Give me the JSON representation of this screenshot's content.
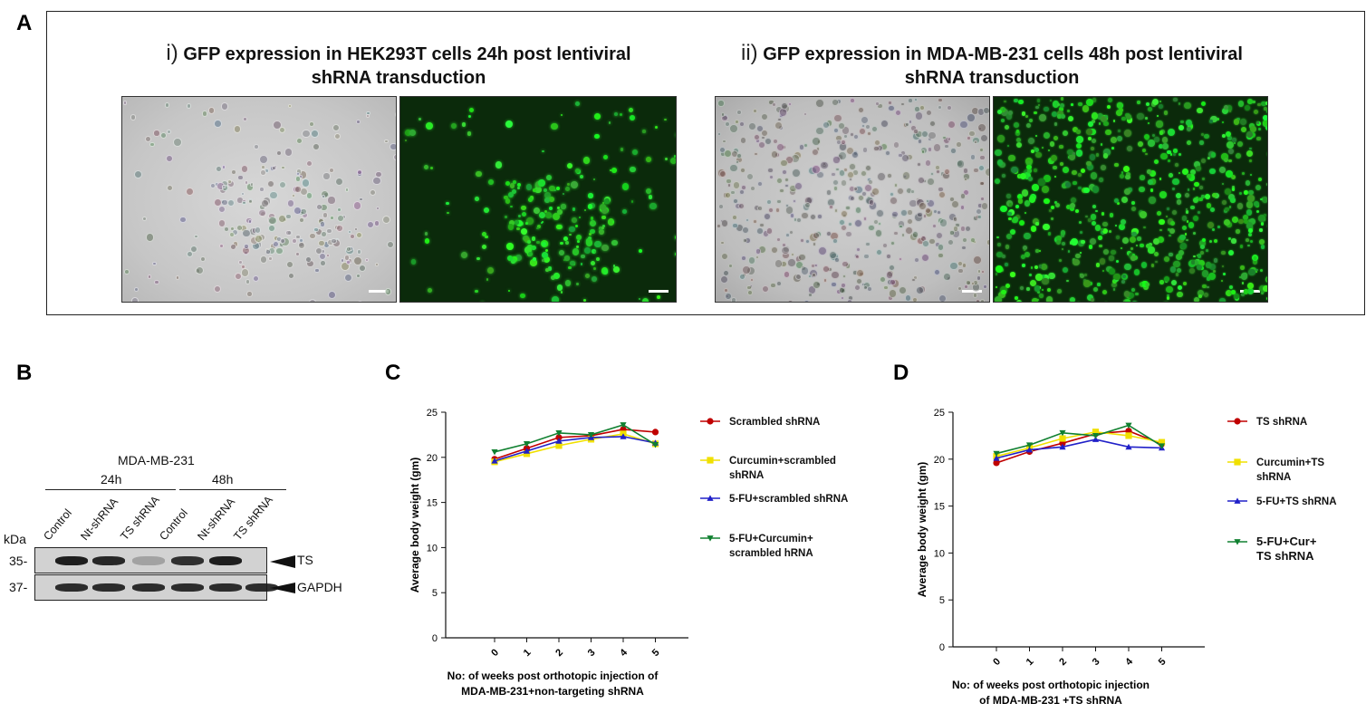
{
  "panel_labels": {
    "a": "A",
    "b": "B",
    "c": "C",
    "d": "D"
  },
  "panel_a": {
    "left": {
      "roman": "i)",
      "title_line1": "GFP expression in HEK293T cells 24h post lentiviral",
      "title_line2": "shRNA transduction"
    },
    "right": {
      "roman": "ii)",
      "title_line1": "GFP expression in MDA-MB-231 cells 48h post lentiviral",
      "title_line2": "shRNA transduction"
    }
  },
  "panel_b": {
    "cell_line": "MDA-MB-231",
    "time_24h": "24h",
    "time_48h": "48h",
    "lanes": [
      "Control",
      "Nt-shRNA",
      "TS shRNA",
      "Control",
      "Nt-shRNA",
      "TS shRNA"
    ],
    "kda_label": "kDa",
    "marker_ts": "35-",
    "marker_gapdh": "37-",
    "band_ts": "TS",
    "band_gapdh": "GAPDH",
    "ts_intensity": [
      0.95,
      0.9,
      0.25,
      0.85,
      0.95,
      0.0
    ]
  },
  "chart_data": [
    {
      "type": "line",
      "panel": "C",
      "ylabel": "Average body weight (gm)",
      "xlabel_line1": "No: of weeks post orthotopic injection of",
      "xlabel_line2": "MDA-MB-231+non-targeting shRNA",
      "x": [
        0,
        1,
        2,
        3,
        4,
        5
      ],
      "x_ticks": [
        "0",
        "1",
        "2",
        "3",
        "4",
        "5"
      ],
      "y_ticks": [
        "0",
        "5",
        "10",
        "15",
        "20",
        "25"
      ],
      "ylim": [
        0,
        25
      ],
      "series": [
        {
          "name": "Scrambled shRNA",
          "color": "#c00000",
          "marker": "circle",
          "values": [
            19.8,
            21.0,
            22.2,
            22.4,
            23.1,
            22.8
          ],
          "legend_lines": [
            "Scrambled shRNA"
          ]
        },
        {
          "name": "Curcumin+scrambled shRNA",
          "color": "#f0e000",
          "marker": "square",
          "values": [
            19.5,
            20.4,
            21.3,
            22.0,
            22.6,
            21.5
          ],
          "legend_lines": [
            "Curcumin+scrambled",
            "shRNA"
          ]
        },
        {
          "name": "5-FU+scrambled shRNA",
          "color": "#2020c8",
          "marker": "triangle",
          "values": [
            19.6,
            20.7,
            21.8,
            22.2,
            22.3,
            21.6
          ],
          "legend_lines": [
            "5-FU+scrambled shRNA"
          ]
        },
        {
          "name": "5-FU+Curcumin+ scrambled hRNA",
          "color": "#108030",
          "marker": "triangle-down",
          "values": [
            20.6,
            21.5,
            22.7,
            22.5,
            23.6,
            21.4
          ],
          "legend_lines": [
            "5-FU+Curcumin+",
            "scrambled hRNA"
          ]
        }
      ]
    },
    {
      "type": "line",
      "panel": "D",
      "ylabel": "Average body weight (gm)",
      "xlabel_line1": "No: of weeks post orthotopic injection",
      "xlabel_line2": "of MDA-MB-231 +TS shRNA",
      "x": [
        0,
        1,
        2,
        3,
        4,
        5
      ],
      "x_ticks": [
        "0",
        "1",
        "2",
        "3",
        "4",
        "5"
      ],
      "y_ticks": [
        "0",
        "5",
        "10",
        "15",
        "20",
        "25"
      ],
      "ylim": [
        0,
        25
      ],
      "series": [
        {
          "name": "TS shRNA",
          "color": "#c00000",
          "marker": "circle",
          "values": [
            19.6,
            20.8,
            21.7,
            22.7,
            23.0,
            21.6
          ],
          "legend_lines": [
            "TS shRNA"
          ]
        },
        {
          "name": "Curcumin+TS shRNA",
          "color": "#f0e000",
          "marker": "square",
          "values": [
            20.3,
            21.2,
            22.2,
            22.9,
            22.5,
            21.8
          ],
          "legend_lines": [
            "Curcumin+TS",
            "shRNA"
          ]
        },
        {
          "name": "5-FU+TS shRNA",
          "color": "#2020c8",
          "marker": "triangle",
          "values": [
            20.1,
            21.0,
            21.3,
            22.1,
            21.3,
            21.2
          ],
          "legend_lines": [
            "5-FU+TS shRNA"
          ]
        },
        {
          "name": "5-FU+Cur+ TS shRNA",
          "color": "#108030",
          "marker": "triangle-down",
          "values": [
            20.6,
            21.5,
            22.8,
            22.5,
            23.6,
            21.4
          ],
          "legend_lines": [
            "5-FU+Cur+",
            "TS shRNA"
          ],
          "legend_bold": true
        }
      ]
    }
  ]
}
